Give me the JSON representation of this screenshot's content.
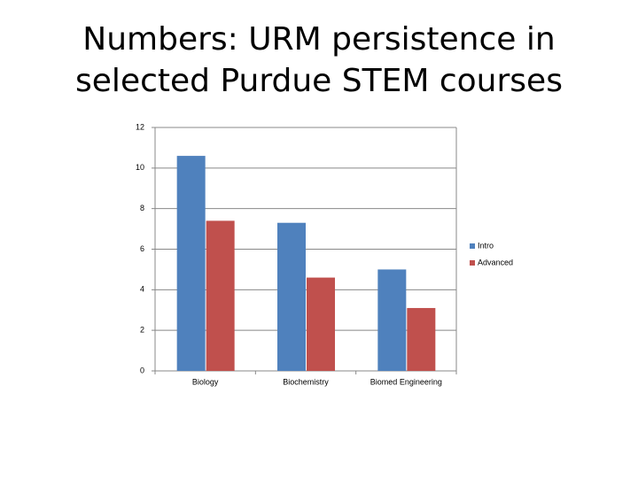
{
  "chart_data": {
    "type": "bar",
    "title": [
      "Numbers:  URM persistence in",
      "selected Purdue STEM courses"
    ],
    "categories": [
      "Biology",
      "Biochemistry",
      "Biomed Engineering"
    ],
    "series": [
      {
        "name": "Intro",
        "color": "#4f81bd",
        "values": [
          10.6,
          7.3,
          5.0
        ]
      },
      {
        "name": "Advanced",
        "color": "#c0504d",
        "values": [
          7.4,
          4.6,
          3.1
        ]
      }
    ],
    "ylim": [
      0,
      12
    ],
    "yticks": [
      0,
      2,
      4,
      6,
      8,
      10,
      12
    ],
    "grid": true,
    "legend": "right"
  }
}
